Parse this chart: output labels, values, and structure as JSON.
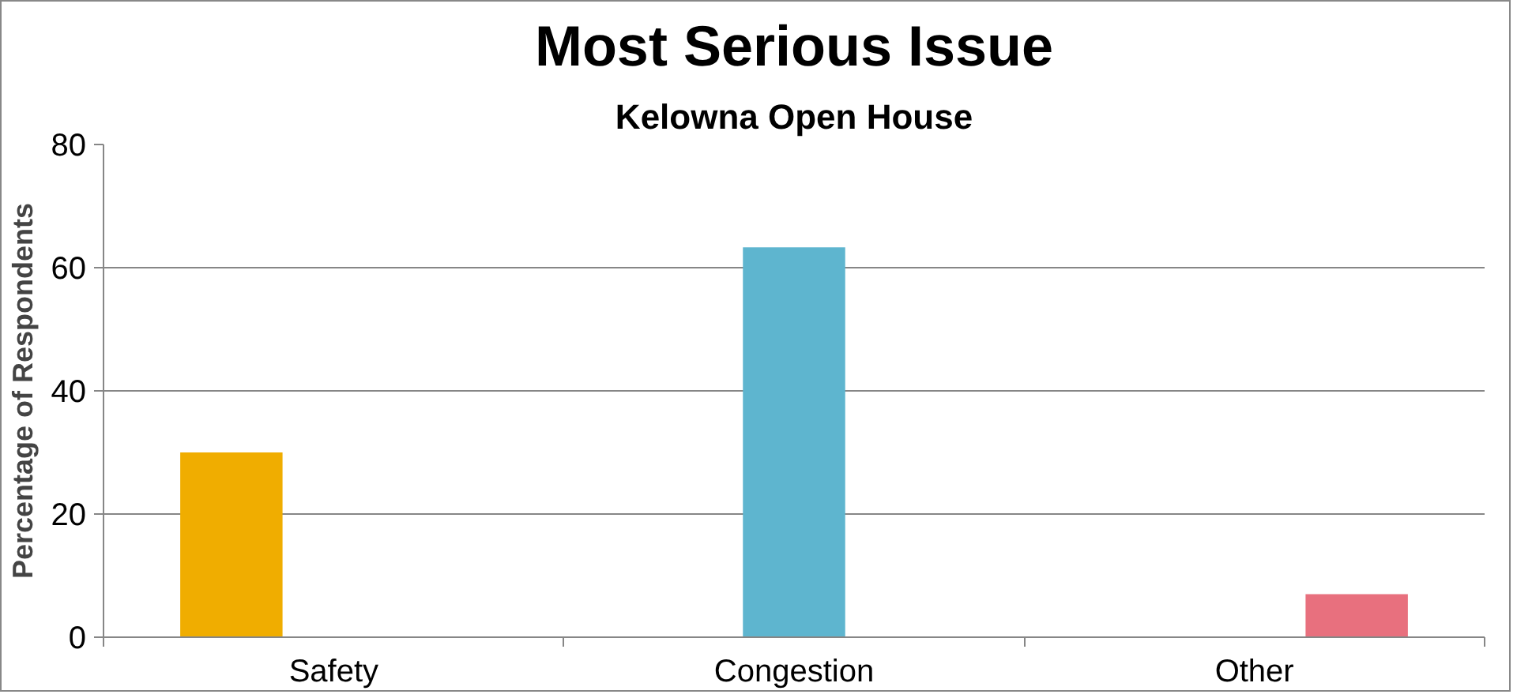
{
  "chart_data": {
    "type": "bar",
    "title": "Most Serious Issue",
    "subtitle": "Kelowna Open House",
    "ylabel": "Percentage of Respondents",
    "categories": [
      "Safety",
      "Congestion",
      "Other"
    ],
    "series": [
      {
        "color": "#f0ad00",
        "values": [
          30,
          null,
          null
        ]
      },
      {
        "color": "#5eb5cf",
        "values": [
          null,
          63.3,
          null
        ]
      },
      {
        "color": "#e8707e",
        "values": [
          null,
          null,
          7
        ]
      }
    ],
    "ylim": [
      0,
      80
    ],
    "yticks": [
      0,
      20,
      40,
      60,
      80
    ],
    "grid": "y"
  }
}
